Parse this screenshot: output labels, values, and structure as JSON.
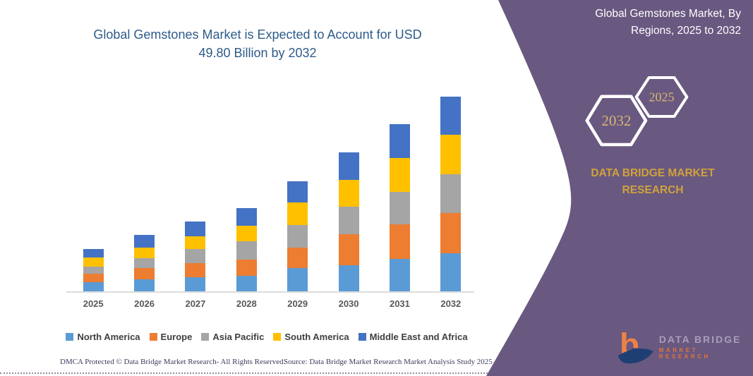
{
  "page": {
    "accent_purple": "#695880",
    "gold": "#cfa23c",
    "hex_gold": "#d9b574",
    "title_blue": "#2e5b8a"
  },
  "chart": {
    "title_line1": "Global Gemstones Market is Expected to Account for USD",
    "title_line2": "49.80 Billion by 2032"
  },
  "chart_data": {
    "type": "bar",
    "stacked": true,
    "title": "Global Gemstones Market is Expected to Account for USD 49.80 Billion by 2032",
    "unit": "USD Billion",
    "categories": [
      "2025",
      "2026",
      "2027",
      "2028",
      "2029",
      "2030",
      "2031",
      "2032"
    ],
    "series": [
      {
        "name": "North America",
        "color": "#5B9BD5",
        "values": [
          2.4,
          3.0,
          3.6,
          3.9,
          6.0,
          6.7,
          8.3,
          9.8
        ]
      },
      {
        "name": "Europe",
        "color": "#ED7D31",
        "values": [
          2.1,
          2.9,
          3.6,
          4.2,
          5.2,
          8.0,
          8.8,
          10.2
        ]
      },
      {
        "name": "Asia Pacific",
        "color": "#A5A5A5",
        "values": [
          1.8,
          2.5,
          3.6,
          4.8,
          5.8,
          6.9,
          8.4,
          10.0
        ]
      },
      {
        "name": "South America",
        "color": "#FFC000",
        "values": [
          2.3,
          2.7,
          3.3,
          3.9,
          5.8,
          6.9,
          8.6,
          10.0
        ]
      },
      {
        "name": "Middle East and Africa",
        "color": "#4472C4",
        "values": [
          2.2,
          3.3,
          3.8,
          4.5,
          5.4,
          7.1,
          8.7,
          9.8
        ]
      }
    ],
    "totals_estimated": [
      10.8,
      14.4,
      17.9,
      21.3,
      28.2,
      35.6,
      42.8,
      49.8
    ],
    "ylim": [
      0,
      50
    ],
    "gridlines": false,
    "y_axis_labels": false,
    "legend_position": "bottom"
  },
  "panel": {
    "title_line1": "Global Gemstones Market, By",
    "title_line2": "Regions, 2025 to 2032",
    "hex_large_year": "2032",
    "hex_small_year": "2025",
    "brand_line1": "DATA BRIDGE MARKET",
    "brand_line2": "RESEARCH",
    "logo_line1": "DATA BRIDGE",
    "logo_line2": "MARKET RESEARCH"
  },
  "footer": {
    "left": "DMCA Protected © Data Bridge Market Research-  All Rights Reserved.",
    "right": "Source: Data Bridge Market Research  Market Analysis Study 2025"
  }
}
